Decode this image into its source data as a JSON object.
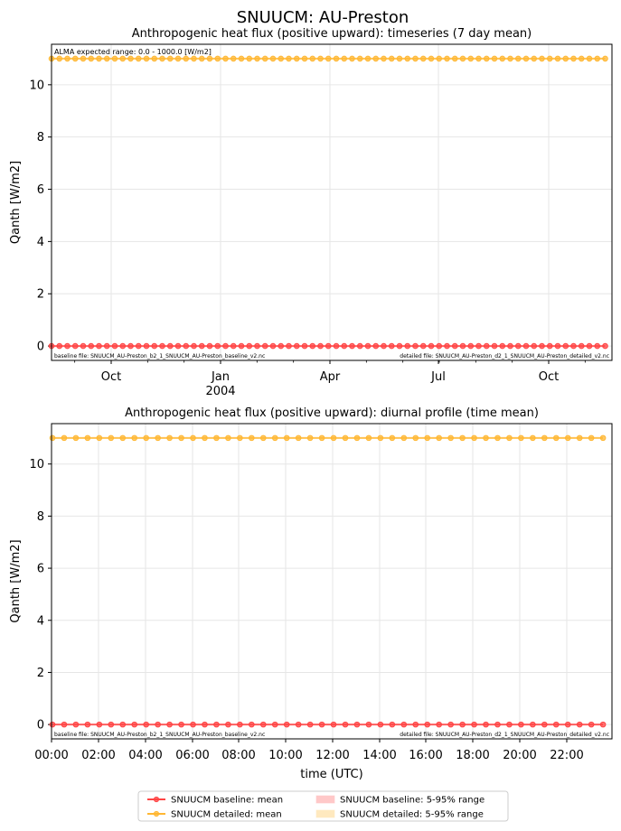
{
  "figure": {
    "suptitle": "SNUUCM: AU-Preston"
  },
  "chart_data": [
    {
      "type": "line",
      "title": "Anthropogenic heat flux (positive upward): timeseries (7 day mean)",
      "xlabel": "",
      "ylabel": "Qanth [W/m2]",
      "x_tick_labels": [
        "Oct",
        "Jan",
        "Apr",
        "Jul",
        "Oct"
      ],
      "x_year_label": "2004",
      "y_ticks": [
        0,
        2,
        4,
        6,
        8,
        10
      ],
      "ylim": [
        -0.55,
        11.55
      ],
      "grid": true,
      "annotations": {
        "expected_range": "ALMA expected range: 0.0 - 1000.0 [W/m2]",
        "baseline_file": "baseline file: SNUUCM_AU-Preston_b2_1_SNUUCM_AU-Preston_baseline_v2.nc",
        "detailed_file": "detailed file: SNUUCM_AU-Preston_d2_1_SNUUCM_AU-Preston_detailed_v2.nc"
      },
      "x_points": 72,
      "series": [
        {
          "name": "SNUUCM baseline: mean",
          "value": 0.0,
          "color": "#ff4444"
        },
        {
          "name": "SNUUCM detailed: mean",
          "value": 11.0,
          "color": "#ffb733"
        }
      ]
    },
    {
      "type": "line",
      "title": "Anthropogenic heat flux (positive upward): diurnal profile (time mean)",
      "xlabel": "time (UTC)",
      "ylabel": "Qanth [W/m2]",
      "x_tick_labels": [
        "00:00",
        "02:00",
        "04:00",
        "06:00",
        "08:00",
        "10:00",
        "12:00",
        "14:00",
        "16:00",
        "18:00",
        "20:00",
        "22:00"
      ],
      "y_ticks": [
        0,
        2,
        4,
        6,
        8,
        10
      ],
      "ylim": [
        -0.55,
        11.55
      ],
      "grid": true,
      "annotations": {
        "baseline_file": "baseline file: SNUUCM_AU-Preston_b2_1_SNUUCM_AU-Preston_baseline_v2.nc",
        "detailed_file": "detailed file: SNUUCM_AU-Preston_d2_1_SNUUCM_AU-Preston_detailed_v2.nc"
      },
      "x_points": 48,
      "series": [
        {
          "name": "SNUUCM baseline: mean",
          "value": 0.0,
          "color": "#ff4444"
        },
        {
          "name": "SNUUCM detailed: mean",
          "value": 11.0,
          "color": "#ffb733"
        }
      ]
    }
  ],
  "legend": {
    "placement": "bottom-center",
    "items": [
      {
        "label": "SNUUCM baseline: mean",
        "kind": "line",
        "color": "#ff4444"
      },
      {
        "label": "SNUUCM detailed: mean",
        "kind": "line",
        "color": "#ffb733"
      },
      {
        "label": "SNUUCM baseline: 5-95% range",
        "kind": "patch",
        "color": "#ffc8c8"
      },
      {
        "label": "SNUUCM detailed: 5-95% range",
        "kind": "patch",
        "color": "#ffe9bf"
      }
    ]
  }
}
